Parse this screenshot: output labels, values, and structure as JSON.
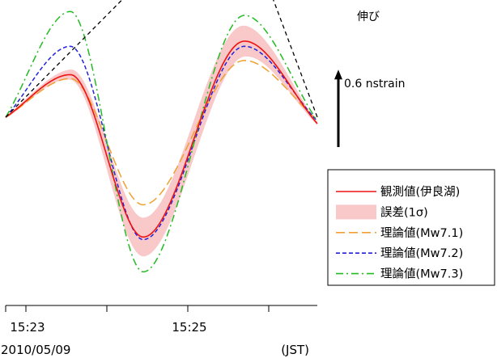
{
  "chart_data": {
    "type": "line",
    "xlabel": "",
    "ylabel": "",
    "x_ticks": [
      {
        "t": 0.0,
        "label": ""
      },
      {
        "t": 0.25,
        "label": "15:23"
      },
      {
        "t": 1.25,
        "label": ""
      },
      {
        "t": 2.25,
        "label": "15:25"
      },
      {
        "t": 3.25,
        "label": ""
      }
    ],
    "date_label": "2010/05/09",
    "timezone_label": "(JST)",
    "x_range": [
      0,
      3.85
    ],
    "scale_bar": {
      "label": "0.6 nstrain",
      "direction_label": "伸び",
      "value": 0.6
    },
    "y_range": [
      -1.25,
      0.95
    ],
    "x": [
      0.0,
      0.8,
      1.7,
      2.95,
      3.85
    ],
    "series": [
      {
        "name": "観測値(伊良湖)",
        "color": "#ee1111",
        "dash": "solid",
        "values": [
          0.0,
          0.33,
          -0.93,
          0.59,
          -0.05
        ]
      },
      {
        "name": "理論値(Mw7.1)",
        "color": "#f0a030",
        "dash": "long-dash",
        "values": [
          0.0,
          0.3,
          -0.68,
          0.44,
          -0.02
        ]
      },
      {
        "name": "理論値(Mw7.2)",
        "color": "#2222dd",
        "dash": "short-dash",
        "values": [
          0.0,
          0.55,
          -0.95,
          0.55,
          -0.03
        ]
      },
      {
        "name": "理論値(Mw7.3)",
        "color": "#22bb22",
        "dash": "dash-dot",
        "values": [
          0.0,
          0.82,
          -1.2,
          0.79,
          -0.03
        ]
      }
    ],
    "error_band": {
      "name": "誤差(1σ)",
      "color": "#f9c8c8",
      "half_width": [
        0.01,
        0.04,
        0.15,
        0.12,
        0.01
      ]
    },
    "trend_lines": {
      "color": "#000000",
      "dash": "dashed",
      "segments": [
        {
          "x": [
            0.0,
            1.8
          ],
          "y": [
            0.0,
            1.14
          ]
        },
        {
          "x": [
            3.17,
            3.85
          ],
          "y": [
            1.14,
            0.0
          ]
        }
      ]
    },
    "legend": {
      "placement": "right",
      "entries": [
        {
          "label": "観測値(伊良湖)",
          "style": "line",
          "color": "#ee1111",
          "dash": "solid"
        },
        {
          "label": "誤差(1σ)",
          "style": "band",
          "color": "#f9c8c8",
          "dash": "solid"
        },
        {
          "label": "理論値(Mw7.1)",
          "style": "line",
          "color": "#f0a030",
          "dash": "long-dash"
        },
        {
          "label": "理論値(Mw7.2)",
          "style": "line",
          "color": "#2222dd",
          "dash": "short-dash"
        },
        {
          "label": "理論値(Mw7.3)",
          "style": "line",
          "color": "#22bb22",
          "dash": "dash-dot"
        }
      ]
    },
    "grid": false
  }
}
